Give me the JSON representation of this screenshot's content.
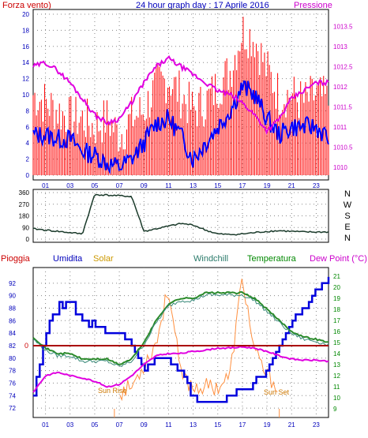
{
  "header": {
    "left": "Forza vento)",
    "center": "24 hour graph day : 17 Aprile 2016",
    "right": "Pressione"
  },
  "legend3": {
    "pioggia": "Pioggia",
    "umidita": "Umidita",
    "solar": "Solar",
    "windchill": "Windchill",
    "temperatura": "Temperatura",
    "dewpoint": "Dew Point (°C)"
  },
  "annotations": {
    "sunrise": "Sun Rise",
    "sunset": "Sun Set",
    "zero": "0"
  },
  "compass": [
    "N",
    "W",
    "S",
    "E",
    "N"
  ],
  "colors": {
    "wind_gust": "#ff0000",
    "wind_avg": "#0000ff",
    "pressure": "#e000e0",
    "direction": "#1a3a2a",
    "humidity": "#0000dd",
    "solar": "#ff9040",
    "windchill": "#3a8a7a",
    "temperature": "#2a8a2a",
    "dewpoint": "#e000e0",
    "rain": "#aa0000",
    "frame_blue": "#0000bb",
    "frame_magenta": "#cc00cc",
    "frame_green": "#008800"
  },
  "chart_data": [
    {
      "type": "line",
      "ylim_left": [
        0,
        20
      ],
      "yticks_left": [
        "0",
        "2",
        "4",
        "6",
        "8",
        "10",
        "12",
        "14",
        "16",
        "18",
        "20"
      ],
      "ylim_right": [
        1009.8,
        1013.8
      ],
      "yticks_right": [
        "1010",
        "1010.5",
        "1011",
        "1011.5",
        "1012",
        "1012.5",
        "1013",
        "1013.5"
      ],
      "x_ticks": [
        "01",
        "03",
        "05",
        "07",
        "09",
        "11",
        "13",
        "15",
        "17",
        "19",
        "21",
        "23"
      ],
      "x": [
        0,
        1,
        2,
        3,
        4,
        5,
        6,
        7,
        8,
        9,
        10,
        11,
        12,
        13,
        14,
        15,
        16,
        17,
        18,
        19,
        20,
        21,
        22,
        23,
        24
      ],
      "series": [
        {
          "key": "gust",
          "values": [
            10,
            9,
            8,
            7,
            7,
            6,
            7,
            5,
            7,
            8,
            11,
            12,
            10,
            8,
            9,
            11,
            13,
            18,
            17,
            13,
            10,
            10,
            9,
            10,
            9
          ]
        },
        {
          "key": "avg",
          "values": [
            5,
            5,
            4.5,
            4.5,
            3,
            2.5,
            1.5,
            1,
            2,
            4,
            6.5,
            7,
            5,
            2,
            4,
            6,
            8,
            11,
            10,
            7,
            5,
            6,
            6,
            6,
            4.5
          ]
        },
        {
          "key": "pressure",
          "values": [
            1012.5,
            1012.6,
            1012.4,
            1012.1,
            1011.7,
            1011.3,
            1011.1,
            1011.2,
            1011.6,
            1012.1,
            1012.5,
            1012.7,
            1012.5,
            1012.3,
            1012.1,
            1011.9,
            1011.8,
            1011.6,
            1011.3,
            1010.9,
            1011.2,
            1011.7,
            1011.9,
            1012.1,
            1012.1
          ]
        }
      ]
    },
    {
      "type": "line",
      "ylim": [
        0,
        360
      ],
      "yticks": [
        "0",
        "90",
        "180",
        "270",
        "360"
      ],
      "x": [
        0,
        1,
        2,
        3,
        4,
        5,
        6,
        7,
        8,
        9,
        10,
        11,
        12,
        13,
        14,
        15,
        16,
        17,
        18,
        19,
        20,
        21,
        22,
        23,
        24
      ],
      "series": [
        {
          "key": "direction",
          "values": [
            80,
            70,
            60,
            50,
            40,
            345,
            340,
            335,
            330,
            60,
            80,
            100,
            120,
            110,
            70,
            40,
            35,
            40,
            50,
            60,
            65,
            60,
            55,
            55,
            55
          ]
        }
      ]
    },
    {
      "type": "line",
      "ylim_humidity": [
        71,
        94
      ],
      "yticks_humidity": [
        "72",
        "74",
        "76",
        "78",
        "80",
        "82",
        "84",
        "86",
        "88",
        "90",
        "92"
      ],
      "ylim_temp": [
        8.5,
        21.5
      ],
      "yticks_temp": [
        "9",
        "10",
        "11",
        "12",
        "13",
        "14",
        "15",
        "16",
        "17",
        "18",
        "19",
        "20",
        "21"
      ],
      "x": [
        0,
        1,
        2,
        3,
        4,
        5,
        6,
        7,
        8,
        9,
        10,
        11,
        12,
        13,
        14,
        15,
        16,
        17,
        18,
        19,
        20,
        21,
        22,
        23,
        24
      ],
      "series": [
        {
          "key": "humidity",
          "values": [
            74,
            84,
            88,
            89,
            86,
            85,
            84,
            84,
            82,
            78,
            80,
            80,
            78,
            74,
            73,
            73,
            74,
            75,
            76,
            78,
            82,
            86,
            88,
            91,
            93
          ]
        },
        {
          "key": "temperature",
          "values": [
            15.5,
            14.5,
            14,
            14,
            13.5,
            13.5,
            13.5,
            13,
            13.5,
            15,
            17,
            18.5,
            19,
            19,
            19.5,
            19.5,
            19.5,
            19.5,
            19,
            18,
            17,
            16,
            15.5,
            15.3,
            15
          ]
        },
        {
          "key": "dewpoint",
          "values": [
            10.5,
            12,
            12.3,
            12,
            11.8,
            11.5,
            11,
            11.2,
            12,
            13,
            13.8,
            14,
            14,
            14.2,
            14.3,
            14.5,
            14.5,
            14.6,
            14.5,
            14.2,
            13.8,
            13.5,
            13.4,
            13.4,
            13.3
          ]
        },
        {
          "key": "solar",
          "values": [
            null,
            null,
            null,
            null,
            null,
            null,
            null,
            10.5,
            11,
            13,
            15,
            20,
            12,
            11,
            11,
            11,
            12,
            21,
            14,
            12,
            11,
            null,
            null,
            null,
            null
          ]
        }
      ],
      "rain": 0
    }
  ]
}
